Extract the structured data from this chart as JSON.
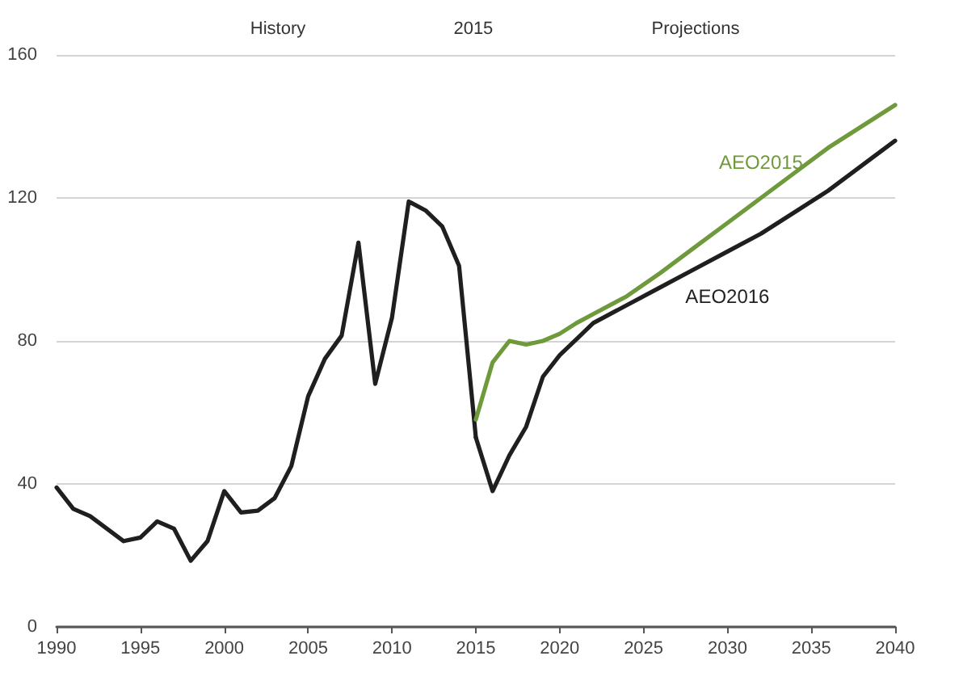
{
  "chart_data": {
    "type": "line",
    "xlim": [
      1990,
      2040
    ],
    "xticks": [
      1990,
      1995,
      2000,
      2005,
      2010,
      2015,
      2020,
      2025,
      2030,
      2035,
      2040
    ],
    "ylim": [
      0,
      160
    ],
    "yticks": [
      0,
      40,
      80,
      120,
      160
    ],
    "grid": "y",
    "legend": false,
    "marker": "none",
    "line_style": "solid",
    "annotations": [
      "History",
      "2015",
      "Projections"
    ],
    "series": [
      {
        "color": "#1f1f1f",
        "x": [
          1990,
          1991,
          1992,
          1993,
          1994,
          1995,
          1996,
          1997,
          1998,
          1999,
          2000,
          2001,
          2002,
          2003,
          2004,
          2005,
          2006,
          2007,
          2008,
          2009,
          2010,
          2011,
          2012,
          2013,
          2014,
          2015
        ],
        "values": [
          39,
          33,
          31,
          27.5,
          24,
          25,
          29.5,
          27.5,
          18.5,
          24,
          38,
          32,
          32.5,
          36,
          45,
          64.5,
          75,
          81.5,
          107.5,
          68,
          86.5,
          119,
          116.5,
          112,
          101,
          53
        ]
      },
      {
        "name": "AEO2016",
        "color": "#1f1f1f",
        "x": [
          2015,
          2016,
          2017,
          2018,
          2019,
          2020,
          2021,
          2022,
          2024,
          2026,
          2028,
          2030,
          2032,
          2034,
          2036,
          2038,
          2040
        ],
        "values": [
          53,
          38,
          48,
          56,
          70,
          76,
          80.5,
          85,
          90,
          95,
          100,
          105,
          110,
          116,
          122,
          129,
          136
        ]
      },
      {
        "name": "AEO2015",
        "color": "#6f9a3c",
        "x": [
          2015,
          2016,
          2017,
          2018,
          2019,
          2020,
          2021,
          2022,
          2024,
          2026,
          2028,
          2030,
          2032,
          2034,
          2036,
          2038,
          2040
        ],
        "values": [
          58,
          74,
          80,
          79,
          80,
          82,
          85,
          87.5,
          92.5,
          99,
          106,
          113,
          120,
          127,
          134,
          140,
          146
        ]
      }
    ]
  }
}
